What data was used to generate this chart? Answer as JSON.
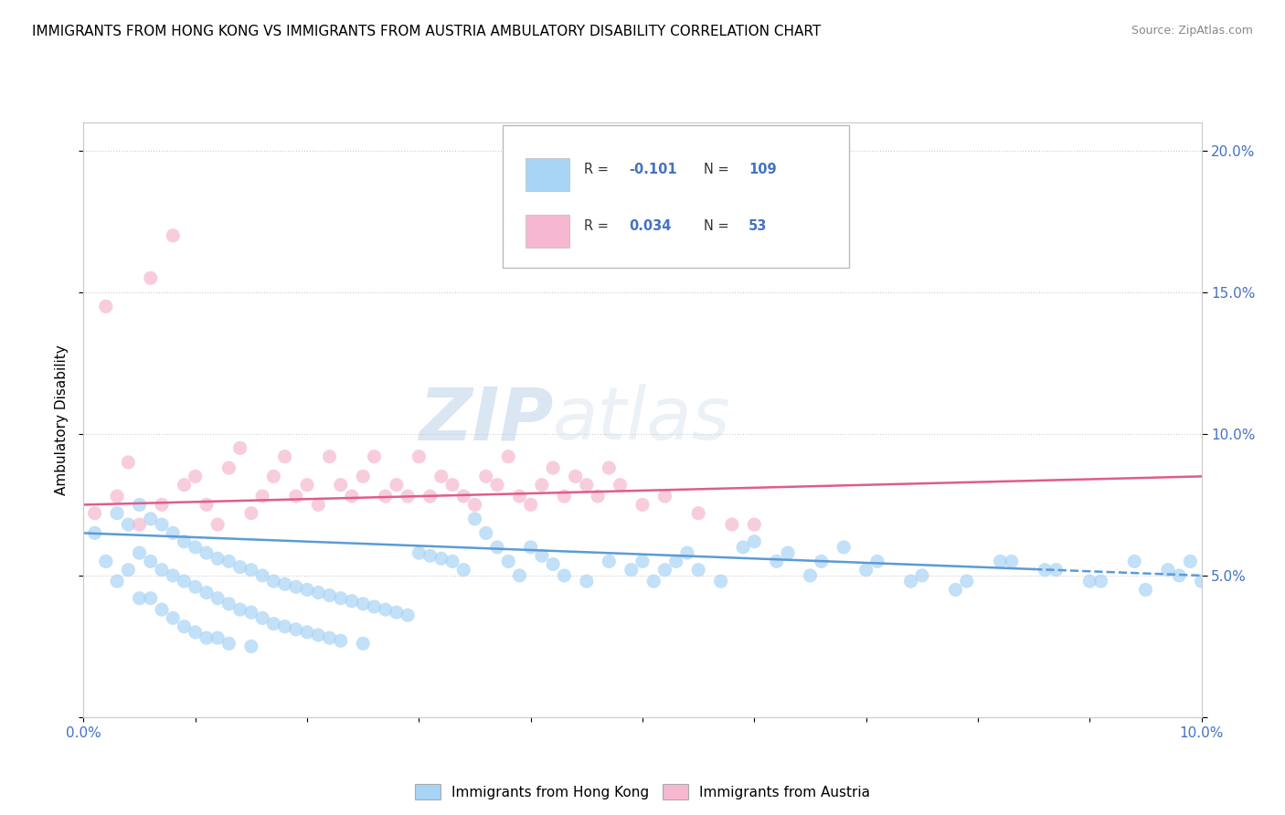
{
  "title": "IMMIGRANTS FROM HONG KONG VS IMMIGRANTS FROM AUSTRIA AMBULATORY DISABILITY CORRELATION CHART",
  "source": "Source: ZipAtlas.com",
  "ylabel": "Ambulatory Disability",
  "xlim": [
    0.0,
    0.1
  ],
  "ylim": [
    0.0,
    0.21
  ],
  "yticks": [
    0.0,
    0.05,
    0.1,
    0.15,
    0.2
  ],
  "ytick_labels_right": [
    "",
    "5.0%",
    "10.0%",
    "15.0%",
    "20.0%"
  ],
  "xtick_labels": [
    "0.0%",
    "",
    "",
    "",
    "",
    "",
    "",
    "",
    "",
    "",
    "10.0%"
  ],
  "color_hk": "#a8d4f5",
  "color_austria": "#f5b8d0",
  "trendline_hk_color": "#5b9bd5",
  "trendline_austria_color": "#e05c8a",
  "watermark_zip": "ZIP",
  "watermark_atlas": "atlas",
  "hk_x": [
    0.001,
    0.002,
    0.003,
    0.003,
    0.004,
    0.004,
    0.005,
    0.005,
    0.005,
    0.006,
    0.006,
    0.006,
    0.007,
    0.007,
    0.007,
    0.008,
    0.008,
    0.008,
    0.009,
    0.009,
    0.009,
    0.01,
    0.01,
    0.01,
    0.011,
    0.011,
    0.011,
    0.012,
    0.012,
    0.012,
    0.013,
    0.013,
    0.013,
    0.014,
    0.014,
    0.015,
    0.015,
    0.015,
    0.016,
    0.016,
    0.017,
    0.017,
    0.018,
    0.018,
    0.019,
    0.019,
    0.02,
    0.02,
    0.021,
    0.021,
    0.022,
    0.022,
    0.023,
    0.023,
    0.024,
    0.025,
    0.025,
    0.026,
    0.027,
    0.028,
    0.029,
    0.03,
    0.031,
    0.032,
    0.033,
    0.034,
    0.035,
    0.036,
    0.037,
    0.038,
    0.039,
    0.04,
    0.041,
    0.042,
    0.043,
    0.045,
    0.047,
    0.049,
    0.051,
    0.053,
    0.055,
    0.057,
    0.059,
    0.062,
    0.065,
    0.068,
    0.071,
    0.075,
    0.079,
    0.083,
    0.087,
    0.091,
    0.095,
    0.098,
    0.1,
    0.06,
    0.063,
    0.066,
    0.07,
    0.074,
    0.078,
    0.082,
    0.086,
    0.09,
    0.094,
    0.097,
    0.099,
    0.05,
    0.052,
    0.054
  ],
  "hk_y": [
    0.065,
    0.055,
    0.072,
    0.048,
    0.068,
    0.052,
    0.075,
    0.058,
    0.042,
    0.07,
    0.055,
    0.042,
    0.068,
    0.052,
    0.038,
    0.065,
    0.05,
    0.035,
    0.062,
    0.048,
    0.032,
    0.06,
    0.046,
    0.03,
    0.058,
    0.044,
    0.028,
    0.056,
    0.042,
    0.028,
    0.055,
    0.04,
    0.026,
    0.053,
    0.038,
    0.052,
    0.037,
    0.025,
    0.05,
    0.035,
    0.048,
    0.033,
    0.047,
    0.032,
    0.046,
    0.031,
    0.045,
    0.03,
    0.044,
    0.029,
    0.043,
    0.028,
    0.042,
    0.027,
    0.041,
    0.04,
    0.026,
    0.039,
    0.038,
    0.037,
    0.036,
    0.058,
    0.057,
    0.056,
    0.055,
    0.052,
    0.07,
    0.065,
    0.06,
    0.055,
    0.05,
    0.06,
    0.057,
    0.054,
    0.05,
    0.048,
    0.055,
    0.052,
    0.048,
    0.055,
    0.052,
    0.048,
    0.06,
    0.055,
    0.05,
    0.06,
    0.055,
    0.05,
    0.048,
    0.055,
    0.052,
    0.048,
    0.045,
    0.05,
    0.048,
    0.062,
    0.058,
    0.055,
    0.052,
    0.048,
    0.045,
    0.055,
    0.052,
    0.048,
    0.055,
    0.052,
    0.055,
    0.055,
    0.052,
    0.058
  ],
  "austria_x": [
    0.001,
    0.002,
    0.003,
    0.004,
    0.005,
    0.006,
    0.007,
    0.008,
    0.009,
    0.01,
    0.011,
    0.012,
    0.013,
    0.014,
    0.015,
    0.016,
    0.017,
    0.018,
    0.019,
    0.02,
    0.021,
    0.022,
    0.023,
    0.024,
    0.025,
    0.026,
    0.027,
    0.028,
    0.029,
    0.03,
    0.031,
    0.032,
    0.033,
    0.034,
    0.035,
    0.036,
    0.037,
    0.038,
    0.039,
    0.04,
    0.041,
    0.042,
    0.043,
    0.044,
    0.045,
    0.046,
    0.047,
    0.048,
    0.05,
    0.052,
    0.055,
    0.058,
    0.06
  ],
  "austria_y": [
    0.072,
    0.145,
    0.078,
    0.09,
    0.068,
    0.155,
    0.075,
    0.17,
    0.082,
    0.085,
    0.075,
    0.068,
    0.088,
    0.095,
    0.072,
    0.078,
    0.085,
    0.092,
    0.078,
    0.082,
    0.075,
    0.092,
    0.082,
    0.078,
    0.085,
    0.092,
    0.078,
    0.082,
    0.078,
    0.092,
    0.078,
    0.085,
    0.082,
    0.078,
    0.075,
    0.085,
    0.082,
    0.092,
    0.078,
    0.075,
    0.082,
    0.088,
    0.078,
    0.085,
    0.082,
    0.078,
    0.088,
    0.082,
    0.075,
    0.078,
    0.072,
    0.068,
    0.068
  ],
  "hk_trendline_start_y": 0.065,
  "hk_trendline_end_y": 0.05,
  "austria_trendline_start_y": 0.075,
  "austria_trendline_end_y": 0.085
}
